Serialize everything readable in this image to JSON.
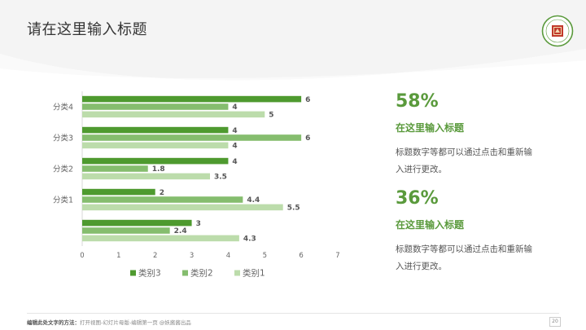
{
  "page": {
    "title": "请在这里输入标题"
  },
  "chart_data": {
    "type": "bar",
    "orientation": "horizontal",
    "categories": [
      "",
      "分类1",
      "分类2",
      "分类3",
      "分类4"
    ],
    "series": [
      {
        "name": "类别3",
        "values": [
          3,
          2,
          4,
          4,
          6
        ],
        "color": "#4e9a2f"
      },
      {
        "name": "类别2",
        "values": [
          2.4,
          4.4,
          1.8,
          6,
          4
        ],
        "color": "#85bd6e"
      },
      {
        "name": "类别1",
        "values": [
          4.3,
          5.5,
          3.5,
          4,
          5
        ],
        "color": "#bcdcab"
      }
    ],
    "xlim": [
      0,
      7
    ],
    "xticks": [
      0,
      1,
      2,
      3,
      4,
      5,
      6,
      7
    ],
    "legend_position": "bottom",
    "data_labels": true,
    "grid": false
  },
  "stats": [
    {
      "value": "58%",
      "title": "在这里输入标题",
      "desc": "标题数字等都可以通过点击和重新输入进行更改。"
    },
    {
      "value": "36%",
      "title": "在这里输入标题",
      "desc": "标题数字等都可以通过点击和重新输入进行更改。"
    }
  ],
  "footer": {
    "label": "编辑此处文字的方法：",
    "text": "打开视图-幻灯片母版-编辑第一页 @妖酱酱出品",
    "page_number": "20"
  },
  "colors": {
    "accent": "#5a9a3c",
    "title": "#333333"
  },
  "logo": {
    "icon": "university-seal-icon"
  }
}
